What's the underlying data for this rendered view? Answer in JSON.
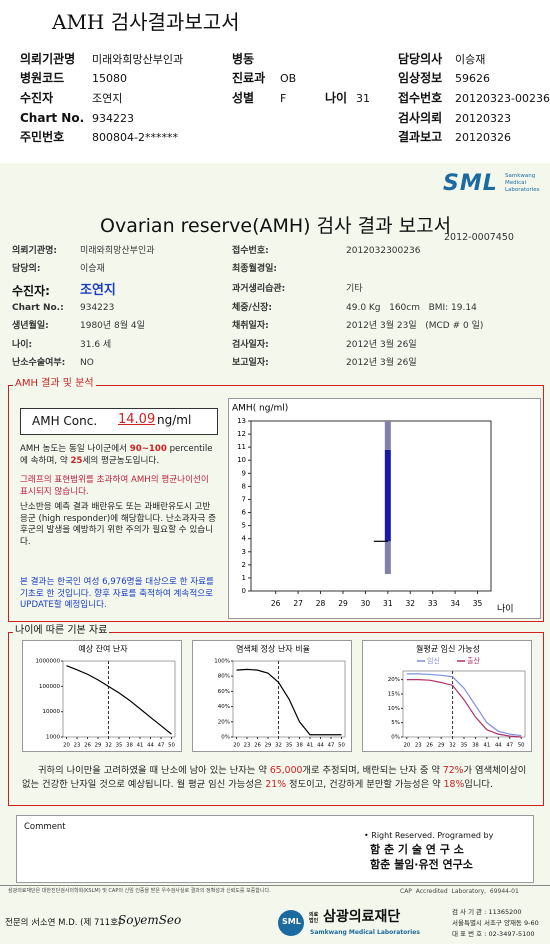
{
  "header": {
    "title": "AMH 검사결과보고서"
  },
  "top_info": [
    {
      "label": "의뢰기관명",
      "value": "미래와희망산부인과"
    },
    {
      "label": "병동"
    },
    {
      "label": "담당의사",
      "value": "이승재"
    },
    {
      "label": "병원코드",
      "value": "15080"
    },
    {
      "label": "진료과",
      "value": "OB"
    },
    {
      "label": "임상정보",
      "value": "59626"
    },
    {
      "label": "수진자",
      "value": "조연지"
    },
    {
      "label": "성별",
      "value": "F"
    },
    {
      "label": "나이",
      "value": "31"
    },
    {
      "label": "접수번호",
      "value": "20120323-00236"
    },
    {
      "label": "Chart No.",
      "value": "934223"
    },
    {
      "label": "검사의뢰",
      "value": "20120323"
    },
    {
      "label": "주민번호",
      "value": "800804-2******"
    },
    {
      "label": "결과보고",
      "value": "20120326"
    }
  ],
  "report": {
    "logo": "SML",
    "logo_sub": [
      "Samkwang",
      "Medical",
      "Laboratories"
    ],
    "title": "Ovarian reserve(AMH) 검사 결과 보고서",
    "number": "2012-0007450",
    "left": [
      {
        "label": "의뢰기관명:",
        "value": "미래와희망산부인과"
      },
      {
        "label": "담당의:",
        "value": "이승재"
      },
      {
        "label": "수진자:",
        "value": "조연지"
      },
      {
        "label": "Chart No.:",
        "value": "934223"
      },
      {
        "label": "생년월일:",
        "value": "1980년 8월 4일"
      },
      {
        "label": "나이:",
        "value": "31.6 세"
      },
      {
        "label": "난소수술여부:",
        "value": "NO"
      }
    ],
    "right": [
      {
        "label": "접수번호:",
        "value": "2012032300236"
      },
      {
        "label": "최종월경일:"
      },
      {
        "label": "과거생리습관:",
        "value": "기타"
      },
      {
        "label": "체중/신장:",
        "value": "49.0 Kg   160cm   BMI: 19.14"
      },
      {
        "label": "채취일자:",
        "value": "2012년 3월 23일   (MCD # 0 일)"
      },
      {
        "label": "검사일자:",
        "value": "2012년 3월 26일"
      },
      {
        "label": "보고일자:",
        "value": "2012년 3월 26일"
      }
    ]
  },
  "amh_section": {
    "title": "AMH 결과 및 분석",
    "conc_label": "AMH Conc.",
    "conc_value": "14.09",
    "conc_unit": "ng/ml",
    "paragraph1": [
      "AMH 농도는 동일 나이군에서  ",
      "90~100",
      " percentile에 속하며, 약 ",
      "25",
      "세의 평균농도입니다."
    ],
    "paragraph2": "그래프의 표현범위를 초과하여 AMH의 평균나이선이 표시되지 않습니다.",
    "paragraph3": "난소반응 예측 결과 배란유도 또는 과배란유도시 고반응군 (high responder)에 해당합니다. 난소과자극 증후군의 발생을 예방하기 위한 주의가 필요할 수 있습니다.",
    "paragraph4": "본 결과는 한국인 여성 6,976명을 대상으로 한 자료를 기초로 한 것입니다. 향후 자료를 축적하여 계속적으로 UPDATE할 예정입니다."
  },
  "amh_chart": {
    "type": "range_bar",
    "y_label": "AMH( ng/ml)",
    "x_label": "나이",
    "xlim": [
      24.9,
      35.6
    ],
    "xticks": [
      26,
      27,
      28,
      29,
      30,
      31,
      32,
      33,
      34,
      35
    ],
    "ylim": [
      0,
      13
    ],
    "yticks": [
      0,
      1,
      2,
      3,
      4,
      5,
      6,
      7,
      8,
      9,
      10,
      11,
      12,
      13
    ],
    "range": {
      "x": 31,
      "low": 1.3,
      "q1": 3.8,
      "q3": 10.8,
      "high": 13,
      "marker": 3.8
    },
    "colors": {
      "outer": "#8080a8",
      "inner": "#1a1aa8"
    }
  },
  "age_section": {
    "title": "나이에 따른 기본 자료",
    "summary": [
      "귀하의 나이만을 고려하였을 때 난소에 남아 있는 난자는 약 ",
      "65,000",
      "개로 추정되며, 배란되는 난자 중 약 ",
      "72%",
      "가 염색체이상이 없는 건강한 난자일 것으로 예상됩니다. 월 평균 임신 가능성은 ",
      "21%",
      " 정도이고, 건강하게 분만할 가능성은 약 ",
      "18%",
      "입니다."
    ]
  },
  "age_charts": [
    {
      "type": "line",
      "title": "예상 잔여 난자",
      "log_scale": true,
      "xlim": [
        19,
        51
      ],
      "xticks": [
        20,
        23,
        26,
        29,
        32,
        35,
        38,
        41,
        44,
        47,
        50
      ],
      "ylim": [
        1000,
        1000000
      ],
      "yticks": [
        1000,
        10000,
        100000,
        1000000
      ],
      "marker_x": 32,
      "x": [
        20,
        23,
        26,
        29,
        32,
        35,
        38,
        41,
        44,
        47,
        50
      ],
      "series": [
        {
          "color": "#000000",
          "values": [
            650000,
            450000,
            300000,
            180000,
            100000,
            55000,
            28000,
            13000,
            6000,
            2800,
            1300
          ]
        }
      ]
    },
    {
      "type": "line",
      "title": "염색체 정상 난자 비율",
      "log_scale": false,
      "xlim": [
        19,
        51
      ],
      "xticks": [
        20,
        23,
        26,
        29,
        32,
        35,
        38,
        41,
        44,
        47,
        50
      ],
      "ylim": [
        0,
        100
      ],
      "yticks": [
        {
          "value": 0,
          "label": "0%"
        },
        {
          "value": 20,
          "label": "20%"
        },
        {
          "value": 40,
          "label": "40%"
        },
        {
          "value": 60,
          "label": "60%"
        },
        {
          "value": 80,
          "label": "80%"
        },
        {
          "value": 100,
          "label": "100%"
        }
      ],
      "marker_x": 32,
      "x": [
        20,
        23,
        26,
        29,
        32,
        35,
        38,
        41,
        44,
        47,
        50
      ],
      "series": [
        {
          "color": "#000000",
          "values": [
            88,
            89,
            88,
            84,
            72,
            50,
            20,
            3,
            3,
            3,
            3
          ]
        }
      ]
    },
    {
      "type": "line",
      "title": "월평균 임신 가능성",
      "log_scale": false,
      "xlim": [
        19,
        51
      ],
      "xticks": [
        20,
        23,
        26,
        29,
        32,
        35,
        38,
        41,
        44,
        47,
        50
      ],
      "ylim": [
        0,
        23
      ],
      "yticks": [
        {
          "value": 0,
          "label": "0%"
        },
        {
          "value": 5,
          "label": "5%"
        },
        {
          "value": 10,
          "label": "10%"
        },
        {
          "value": 15,
          "label": "15%"
        },
        {
          "value": 20,
          "label": "20%"
        }
      ],
      "marker_x": 32,
      "x": [
        20,
        23,
        26,
        29,
        32,
        35,
        38,
        41,
        44,
        47,
        50
      ],
      "series": [
        {
          "name": "임신",
          "color": "#7f8fe0",
          "values": [
            22,
            22,
            21.8,
            21.5,
            21,
            17,
            11,
            5,
            2,
            1,
            0.5
          ]
        },
        {
          "name": "출산",
          "color": "#b0306a",
          "values": [
            20,
            20,
            19.8,
            19,
            18,
            13,
            7,
            2.5,
            1,
            0.3,
            0
          ]
        }
      ]
    }
  ],
  "comment": {
    "label": "Comment",
    "rights": "• Right Reserved. Programed by",
    "org1": "함 춘 기 술 연 구 소",
    "org2": "함춘 불임·유전 연구소"
  },
  "footer": {
    "notice": "삼광의료재단은 대한진단검사의학회(KSLM) 및 CAP의 신임 인증을 받은 우수검사실로 결과의 정확성과 신뢰도를 보증합니다.",
    "cap": "CAP  Accredited  Laboratory,  69944-01",
    "doctor_label": "전문의 :",
    "doctor": "서소연 M.D. (제 711호)",
    "signature": "SoyemSeo",
    "logo": "SML",
    "foundation_prefix": "의료법인",
    "foundation": "삼광의료재단",
    "foundation_en": "Samkwang Medical Laboratories",
    "contact": [
      "검 사 기 관 : 11365200",
      "서울특별시 서초구 양재동 9-60",
      "대 표 번 호 : 02-3497-5100"
    ]
  }
}
